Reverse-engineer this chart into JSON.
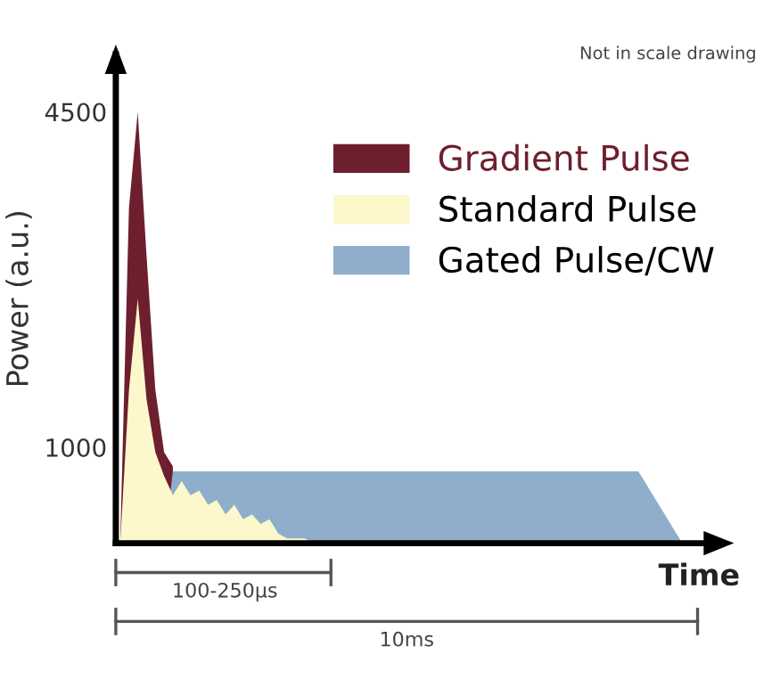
{
  "chart_data": {
    "type": "area",
    "ylabel": "Power (a.u.)",
    "xlabel": "Time",
    "annotations": [
      "Not in scale drawing",
      "100-250µs",
      "10ms"
    ],
    "categories": [
      null,
      null,
      null,
      null,
      null,
      null,
      null,
      null,
      null,
      null,
      null,
      null,
      null,
      null,
      null,
      null,
      null,
      null,
      null,
      null,
      null,
      null,
      null,
      null,
      null,
      null,
      null,
      null,
      null,
      null,
      null,
      null,
      null,
      null,
      null,
      null,
      null,
      null,
      null,
      null,
      null,
      null,
      null,
      null,
      null,
      null,
      null,
      null,
      null,
      null,
      null,
      null,
      null,
      null,
      null,
      null,
      null,
      null,
      null,
      null,
      null,
      null,
      null,
      null,
      null,
      null,
      null,
      null,
      null
    ],
    "series": [
      {
        "name": "Gradient Pulse",
        "color": "#6e1f2e",
        "values": [
          0,
          3500,
          4500,
          3000,
          1600,
          950,
          800,
          null,
          null,
          null,
          null,
          null,
          null,
          null,
          null,
          null,
          null,
          null,
          null,
          null,
          null,
          null,
          null,
          null,
          null,
          null,
          null,
          null,
          null,
          null,
          null,
          null,
          null,
          null,
          null,
          null,
          null,
          null,
          null,
          null,
          null,
          null,
          null,
          null,
          null,
          null,
          null,
          null,
          null,
          null,
          null,
          null,
          null,
          null,
          null,
          null,
          null,
          null,
          null,
          null,
          null,
          null,
          null,
          null,
          null,
          null,
          null,
          null,
          null
        ]
      },
      {
        "name": "Standard Pulse",
        "color": "#fdf8cc",
        "values": [
          0,
          1600,
          2550,
          1500,
          950,
          700,
          500,
          650,
          500,
          550,
          400,
          450,
          300,
          400,
          250,
          300,
          200,
          250,
          100,
          50,
          50,
          50,
          0,
          0,
          null,
          null,
          null,
          null,
          null,
          null,
          null,
          null,
          null,
          null,
          null,
          null,
          null,
          null,
          null,
          null,
          null,
          null,
          null,
          null,
          null,
          null,
          null,
          null,
          null,
          null,
          null,
          null,
          null,
          null,
          null,
          null,
          null,
          null,
          null,
          null,
          null,
          null,
          null,
          null,
          null,
          null,
          null,
          null,
          null
        ]
      },
      {
        "name": "Gated Pulse/CW",
        "color": "#8eaecb",
        "values": [
          null,
          null,
          null,
          null,
          null,
          0,
          750,
          750,
          750,
          750,
          750,
          750,
          750,
          750,
          750,
          750,
          750,
          750,
          750,
          750,
          750,
          750,
          750,
          750,
          750,
          750,
          750,
          750,
          750,
          750,
          750,
          750,
          750,
          750,
          750,
          750,
          750,
          750,
          750,
          750,
          750,
          750,
          750,
          750,
          750,
          750,
          750,
          750,
          750,
          750,
          750,
          750,
          750,
          750,
          750,
          750,
          750,
          750,
          750,
          750,
          600,
          450,
          300,
          150,
          0,
          null,
          null,
          null,
          null
        ]
      }
    ],
    "ylim": [
      0,
      5100
    ],
    "yticks": [
      1000,
      4500
    ],
    "tick_labels": "y",
    "grid": false,
    "legend": "top right"
  }
}
